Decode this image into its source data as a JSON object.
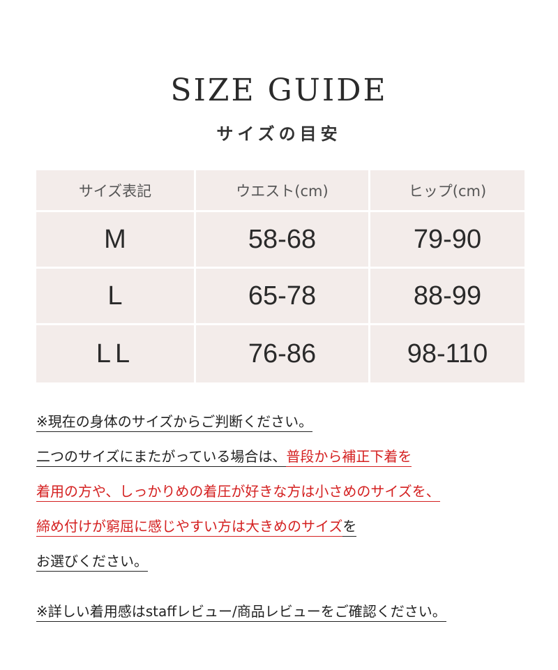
{
  "title": "SIZE GUIDE",
  "subtitle": "サイズの目安",
  "table": {
    "headers": [
      "サイズ表記",
      "ウエスト(cm)",
      "ヒップ(cm)"
    ],
    "rows": [
      [
        "M",
        "58-68",
        "79-90"
      ],
      [
        "L",
        "65-78",
        "88-99"
      ],
      [
        "LL",
        "76-86",
        "98-110"
      ]
    ]
  },
  "notes": {
    "line1": "※現在の身体のサイズからご判断ください。",
    "line2a": "二つのサイズにまたがっている場合は、",
    "line2b": "普段から補正下着を",
    "line3": "着用の方や、しっかりめの着圧が好きな方は小さめのサイズを、",
    "line4a": "締め付けが窮屈に感じやすい方は大きめのサイズ",
    "line4b": "を",
    "line5": "お選びください。",
    "line6": "※詳しい着用感はstaffレビュー/商品レビューをご確認ください。"
  },
  "colors": {
    "table_bg": "#f3ecea",
    "accent_red": "#d42020",
    "text": "#222222"
  }
}
